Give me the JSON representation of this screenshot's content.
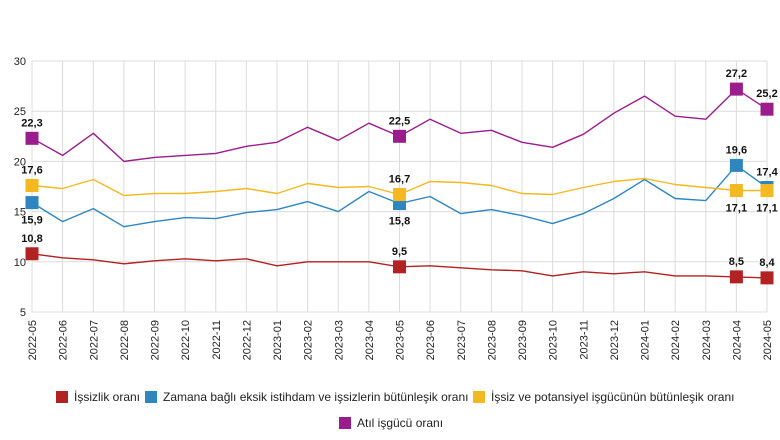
{
  "chart_data": {
    "type": "line",
    "categories": [
      "2022-05",
      "2022-06",
      "2022-07",
      "2022-08",
      "2022-09",
      "2022-10",
      "2022-11",
      "2022-12",
      "2023-01",
      "2023-02",
      "2023-03",
      "2023-04",
      "2023-05",
      "2023-06",
      "2023-07",
      "2023-08",
      "2023-09",
      "2023-10",
      "2023-11",
      "2023-12",
      "2024-01",
      "2024-02",
      "2024-03",
      "2024-04",
      "2024-05"
    ],
    "ylim": [
      5,
      30
    ],
    "yticks": [
      5,
      10,
      15,
      20,
      25,
      30
    ],
    "grid": true,
    "legend_position": "bottom",
    "series": [
      {
        "key": "issizlik",
        "name": "İşsizlik oranı",
        "color": "#b22222",
        "values": [
          10.8,
          10.4,
          10.2,
          9.8,
          10.1,
          10.3,
          10.1,
          10.3,
          9.6,
          10.0,
          10.0,
          10.0,
          9.5,
          9.6,
          9.4,
          9.2,
          9.1,
          8.6,
          9.0,
          8.8,
          9.0,
          8.6,
          8.6,
          8.5,
          8.4
        ],
        "labels": [
          {
            "index": 0,
            "text": "10,8",
            "pos": "above"
          },
          {
            "index": 12,
            "text": "9,5",
            "pos": "above"
          },
          {
            "index": 23,
            "text": "8,5",
            "pos": "above"
          },
          {
            "index": 24,
            "text": "8,4",
            "pos": "above"
          }
        ]
      },
      {
        "key": "zamana",
        "name": "Zamana bağlı eksik istihdam ve işsizlerin bütünleşik oranı",
        "color": "#2e86c1",
        "values": [
          15.9,
          14.0,
          15.3,
          13.5,
          14.0,
          14.4,
          14.3,
          14.9,
          15.2,
          16.0,
          15.0,
          17.0,
          15.8,
          16.5,
          14.8,
          15.2,
          14.6,
          13.8,
          14.8,
          16.3,
          18.2,
          16.3,
          16.1,
          19.6,
          17.4
        ],
        "labels": [
          {
            "index": 0,
            "text": "15,9",
            "pos": "below"
          },
          {
            "index": 12,
            "text": "15,8",
            "pos": "below"
          },
          {
            "index": 23,
            "text": "19,6",
            "pos": "above"
          },
          {
            "index": 24,
            "text": "17,4",
            "pos": "above"
          }
        ]
      },
      {
        "key": "issiz_potansiyel",
        "name": "İşsiz ve potansiyel işgücünün bütünleşik oranı",
        "color": "#f4b820",
        "values": [
          17.6,
          17.3,
          18.2,
          16.6,
          16.8,
          16.8,
          17.0,
          17.3,
          16.8,
          17.8,
          17.4,
          17.5,
          16.7,
          18.0,
          17.9,
          17.6,
          16.8,
          16.7,
          17.4,
          18.0,
          18.3,
          17.7,
          17.4,
          17.1,
          17.1
        ],
        "labels": [
          {
            "index": 0,
            "text": "17,6",
            "pos": "above"
          },
          {
            "index": 12,
            "text": "16,7",
            "pos": "above"
          },
          {
            "index": 23,
            "text": "17,1",
            "pos": "below"
          },
          {
            "index": 24,
            "text": "17,1",
            "pos": "below"
          }
        ]
      },
      {
        "key": "atil",
        "name": "Atıl işgücü oranı",
        "color": "#9b1c8c",
        "values": [
          22.3,
          20.6,
          22.8,
          20.0,
          20.4,
          20.6,
          20.8,
          21.5,
          21.9,
          23.4,
          22.1,
          23.8,
          22.5,
          24.2,
          22.8,
          23.1,
          21.9,
          21.4,
          22.7,
          24.8,
          26.5,
          24.5,
          24.2,
          27.2,
          25.2
        ],
        "labels": [
          {
            "index": 0,
            "text": "22,3",
            "pos": "above"
          },
          {
            "index": 12,
            "text": "22,5",
            "pos": "above"
          },
          {
            "index": 23,
            "text": "27,2",
            "pos": "above"
          },
          {
            "index": 24,
            "text": "25,2",
            "pos": "above"
          }
        ]
      }
    ],
    "markers": [
      0,
      12,
      23,
      24
    ]
  },
  "legend": {
    "items": [
      {
        "key": "issizlik",
        "label": "İşsizlik oranı",
        "color": "#b22222"
      },
      {
        "key": "zamana",
        "label": "Zamana bağlı eksik istihdam ve işsizlerin bütünleşik oranı",
        "color": "#2e86c1"
      },
      {
        "key": "issiz_potansiyel",
        "label": "İşsiz ve potansiyel işgücünün bütünleşik oranı",
        "color": "#f4b820"
      },
      {
        "key": "atil",
        "label": "Atıl işgücü oranı",
        "color": "#9b1c8c"
      }
    ]
  }
}
